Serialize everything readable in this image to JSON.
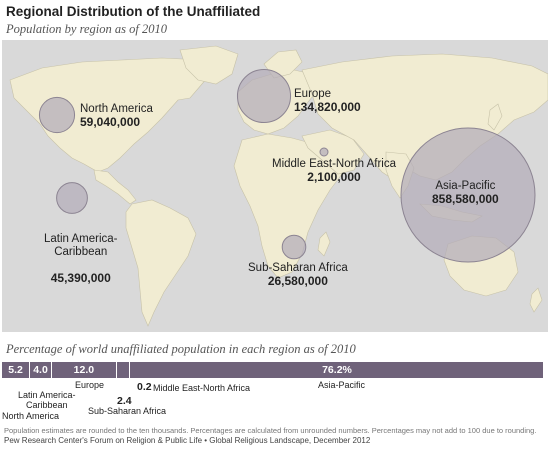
{
  "title": "Regional Distribution of the Unaffiliated",
  "subtitle": "Population by region as of 2010",
  "chart_data": [
    {
      "type": "bubble-map",
      "points": [
        {
          "region": "North America",
          "value": 59040000,
          "label": "59,040,000"
        },
        {
          "region": "Latin America-Caribbean",
          "value": 45390000,
          "label": "45,390,000"
        },
        {
          "region": "Europe",
          "value": 134820000,
          "label": "134,820,000"
        },
        {
          "region": "Middle East-North Africa",
          "value": 2100000,
          "label": "2,100,000"
        },
        {
          "region": "Sub-Saharan Africa",
          "value": 26580000,
          "label": "26,580,000"
        },
        {
          "region": "Asia-Pacific",
          "value": 858580000,
          "label": "858,580,000"
        }
      ]
    },
    {
      "type": "stacked-bar",
      "title": "Percentage of world unaffiliated population in each region as of 2010",
      "categories": [
        "North America",
        "Latin America-Caribbean",
        "Europe",
        "Sub-Saharan Africa",
        "Middle East-North Africa",
        "Asia-Pacific"
      ],
      "values": [
        5.2,
        4.0,
        12.0,
        2.4,
        0.2,
        76.2
      ],
      "value_labels": [
        "5.2",
        "4.0",
        "12.0",
        "2.4",
        "0.2",
        "76.2%"
      ]
    }
  ],
  "bubble_labels": {
    "na_name": "North America",
    "la_name": "Latin America-\nCaribbean",
    "eu_name": "Europe",
    "me_name": "Middle East-North Africa",
    "ss_name": "Sub-Saharan Africa",
    "ap_name": "Asia-Pacific"
  },
  "bar_labels": {
    "na": "North America",
    "la": "Latin America-\nCaribbean",
    "eu": "Europe",
    "ss": "Sub-Saharan Africa",
    "me": "Middle East-North Africa",
    "ap": "Asia-Pacific"
  },
  "footnote": "Population estimates are rounded to the ten thousands. Percentages are calculated from unrounded numbers. Percentages may not add to 100 due to rounding.",
  "source": "Pew Research Center's Forum on Religion & Public Life • Global Religious Landscape, December 2012",
  "colors": {
    "ocean": "#d9d9d9",
    "land": "#f1ecd2",
    "bubble": "#b3acb9",
    "bubble_stroke": "#8c8492",
    "bar": "#6f627a"
  }
}
